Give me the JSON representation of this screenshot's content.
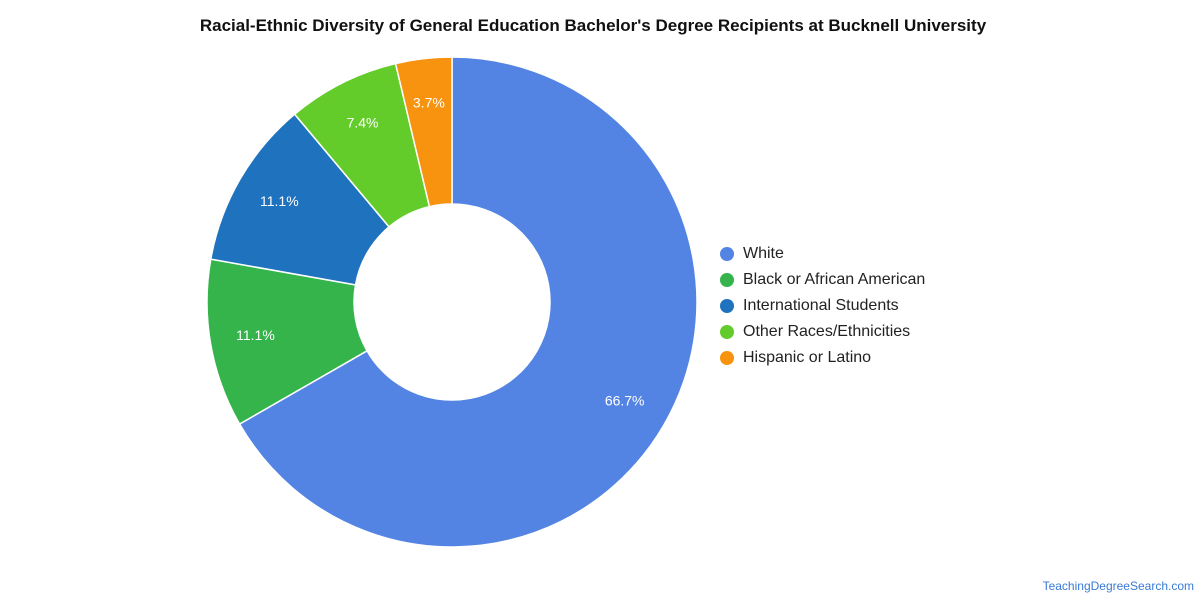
{
  "chart_data": {
    "type": "pie",
    "variant": "donut",
    "title": "Racial-Ethnic Diversity of General Education Bachelor's Degree Recipients at Bucknell University",
    "categories": [
      "White",
      "Black or African American",
      "International Students",
      "Other Races/Ethnicities",
      "Hispanic or Latino"
    ],
    "values": [
      66.7,
      11.1,
      11.1,
      7.4,
      3.7
    ],
    "labels": [
      "66.7%",
      "11.1%",
      "11.1%",
      "7.4%",
      "3.7%"
    ],
    "colors": [
      "#5384e3",
      "#34b44a",
      "#1f72bd",
      "#63cc2a",
      "#f7930e"
    ],
    "legend_position": "right"
  },
  "legend": {
    "items": [
      {
        "label": "White",
        "color": "#5384e3"
      },
      {
        "label": "Black or African American",
        "color": "#34b44a"
      },
      {
        "label": "International Students",
        "color": "#1f72bd"
      },
      {
        "label": "Other Races/Ethnicities",
        "color": "#63cc2a"
      },
      {
        "label": "Hispanic or Latino",
        "color": "#f7930e"
      }
    ]
  },
  "source": "TeachingDegreeSearch.com"
}
